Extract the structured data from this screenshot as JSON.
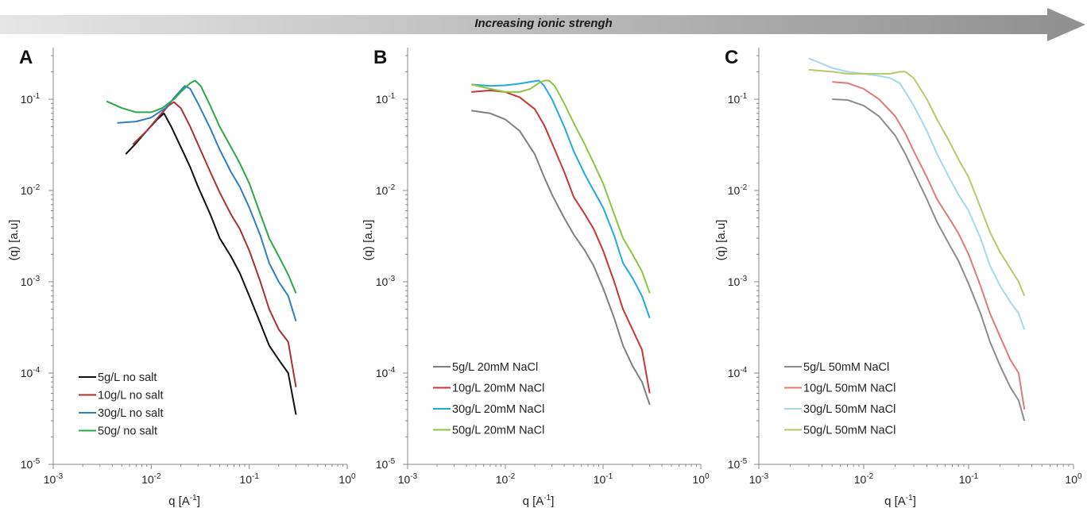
{
  "banner": {
    "text": "Increasing ionic strengh"
  },
  "chart_data": [
    {
      "type": "line",
      "panel_label": "A",
      "scale": "log-log",
      "xlabel": "q [A-1]",
      "ylabel": "(q) [a.u]",
      "xlim": [
        0.001,
        1
      ],
      "ylim": [
        1e-05,
        1
      ],
      "x_ticks": [
        "10-3",
        "10-2",
        "10-1",
        "100"
      ],
      "y_ticks": [
        "10-1",
        "10-2",
        "10-3",
        "10-4",
        "10-5"
      ],
      "legend_position": "bottom-left",
      "series": [
        {
          "name": "5g/L no salt",
          "color": "#111111",
          "x": [
            0.0055,
            0.007,
            0.009,
            0.0115,
            0.0135,
            0.016,
            0.02,
            0.025,
            0.03,
            0.04,
            0.05,
            0.065,
            0.08,
            0.1,
            0.13,
            0.16,
            0.2,
            0.25,
            0.3
          ],
          "y": [
            0.025,
            0.033,
            0.045,
            0.06,
            0.07,
            0.05,
            0.03,
            0.018,
            0.011,
            0.0055,
            0.003,
            0.0019,
            0.00125,
            0.0007,
            0.00035,
            0.0002,
            0.00014,
            0.0001,
            3.5e-05
          ]
        },
        {
          "name": "10g/L no salt",
          "color": "#a83232",
          "x": [
            0.0065,
            0.009,
            0.012,
            0.015,
            0.017,
            0.02,
            0.025,
            0.03,
            0.04,
            0.05,
            0.065,
            0.08,
            0.1,
            0.13,
            0.16,
            0.2,
            0.25,
            0.3
          ],
          "y": [
            0.032,
            0.045,
            0.065,
            0.085,
            0.093,
            0.08,
            0.05,
            0.032,
            0.016,
            0.0095,
            0.0055,
            0.0038,
            0.0022,
            0.001,
            0.0005,
            0.0003,
            0.00022,
            7e-05
          ]
        },
        {
          "name": "30g/L no salt",
          "color": "#2f7fc1",
          "x": [
            0.0045,
            0.007,
            0.01,
            0.014,
            0.018,
            0.022,
            0.025,
            0.03,
            0.04,
            0.05,
            0.065,
            0.08,
            0.1,
            0.13,
            0.16,
            0.2,
            0.25,
            0.3
          ],
          "y": [
            0.055,
            0.057,
            0.063,
            0.08,
            0.11,
            0.14,
            0.13,
            0.09,
            0.048,
            0.028,
            0.016,
            0.011,
            0.0065,
            0.0032,
            0.0016,
            0.001,
            0.0007,
            0.00037
          ]
        },
        {
          "name": "50g/ no salt",
          "color": "#2aa84a",
          "x": [
            0.0035,
            0.005,
            0.007,
            0.01,
            0.013,
            0.017,
            0.02,
            0.025,
            0.028,
            0.032,
            0.04,
            0.05,
            0.065,
            0.08,
            0.1,
            0.13,
            0.16,
            0.2,
            0.25,
            0.3
          ],
          "y": [
            0.095,
            0.08,
            0.072,
            0.072,
            0.08,
            0.1,
            0.12,
            0.15,
            0.16,
            0.14,
            0.085,
            0.05,
            0.03,
            0.02,
            0.012,
            0.0055,
            0.003,
            0.0019,
            0.0012,
            0.00075
          ]
        }
      ]
    },
    {
      "type": "line",
      "panel_label": "B",
      "scale": "log-log",
      "xlabel": "q [A-1]",
      "ylabel": "(q) [a.u]",
      "xlim": [
        0.001,
        1
      ],
      "ylim": [
        1e-05,
        1
      ],
      "x_ticks": [
        "10-3",
        "10-2",
        "10-1",
        "100"
      ],
      "y_ticks": [
        "10-1",
        "10-2",
        "10-3",
        "10-4",
        "10-5"
      ],
      "legend_position": "bottom-left",
      "series": [
        {
          "name": "5g/L 20mM NaCl",
          "color": "#808080",
          "x": [
            0.0045,
            0.007,
            0.01,
            0.014,
            0.02,
            0.025,
            0.03,
            0.04,
            0.05,
            0.065,
            0.08,
            0.1,
            0.13,
            0.16,
            0.2,
            0.25,
            0.3
          ],
          "y": [
            0.075,
            0.07,
            0.06,
            0.045,
            0.025,
            0.014,
            0.009,
            0.005,
            0.0033,
            0.0022,
            0.0015,
            0.00085,
            0.0004,
            0.0002,
            0.00012,
            8e-05,
            4.5e-05
          ]
        },
        {
          "name": "10g/L 20mM NaCl",
          "color": "#c83737",
          "x": [
            0.0045,
            0.007,
            0.01,
            0.014,
            0.02,
            0.025,
            0.03,
            0.04,
            0.05,
            0.065,
            0.08,
            0.1,
            0.13,
            0.16,
            0.2,
            0.25,
            0.3
          ],
          "y": [
            0.12,
            0.125,
            0.12,
            0.105,
            0.078,
            0.052,
            0.033,
            0.016,
            0.0085,
            0.0055,
            0.0038,
            0.0022,
            0.001,
            0.0005,
            0.0003,
            0.00018,
            6e-05
          ]
        },
        {
          "name": "30g/L 20mM NaCl",
          "color": "#22aadd",
          "x": [
            0.0045,
            0.007,
            0.01,
            0.014,
            0.018,
            0.022,
            0.025,
            0.03,
            0.04,
            0.05,
            0.065,
            0.08,
            0.1,
            0.13,
            0.16,
            0.2,
            0.25,
            0.3
          ],
          "y": [
            0.145,
            0.14,
            0.142,
            0.148,
            0.155,
            0.16,
            0.14,
            0.1,
            0.05,
            0.027,
            0.015,
            0.01,
            0.0065,
            0.0032,
            0.0016,
            0.0011,
            0.0007,
            0.0004
          ]
        },
        {
          "name": "50g/L 20mM NaCl",
          "color": "#8cc63f",
          "x": [
            0.0045,
            0.007,
            0.01,
            0.014,
            0.018,
            0.022,
            0.025,
            0.028,
            0.032,
            0.04,
            0.05,
            0.065,
            0.08,
            0.1,
            0.13,
            0.16,
            0.2,
            0.25,
            0.3
          ],
          "y": [
            0.145,
            0.13,
            0.12,
            0.12,
            0.13,
            0.15,
            0.16,
            0.16,
            0.14,
            0.09,
            0.055,
            0.032,
            0.02,
            0.012,
            0.0055,
            0.003,
            0.002,
            0.0013,
            0.00075
          ]
        }
      ]
    },
    {
      "type": "line",
      "panel_label": "C",
      "scale": "log-log",
      "xlabel": "q [A-1]",
      "ylabel": "(q) [a.u]",
      "xlim": [
        0.001,
        1
      ],
      "ylim": [
        1e-05,
        1
      ],
      "x_ticks": [
        "10-3",
        "10-2",
        "10-1",
        "100"
      ],
      "y_ticks": [
        "10-1",
        "10-2",
        "10-3",
        "10-4",
        "10-5"
      ],
      "legend_position": "bottom-left",
      "series": [
        {
          "name": "5g/L 50mM NaCl",
          "color": "#8c8c8c",
          "x": [
            0.005,
            0.007,
            0.01,
            0.014,
            0.02,
            0.025,
            0.03,
            0.04,
            0.05,
            0.065,
            0.08,
            0.1,
            0.13,
            0.16,
            0.2,
            0.25,
            0.3,
            0.34
          ],
          "y": [
            0.1,
            0.098,
            0.085,
            0.065,
            0.04,
            0.025,
            0.016,
            0.008,
            0.0045,
            0.0026,
            0.0017,
            0.00095,
            0.00045,
            0.00022,
            0.00012,
            7e-05,
            5e-05,
            3e-05
          ]
        },
        {
          "name": "10g/L 50mM NaCl",
          "color": "#e07a7a",
          "x": [
            0.005,
            0.007,
            0.01,
            0.014,
            0.02,
            0.025,
            0.03,
            0.04,
            0.05,
            0.065,
            0.08,
            0.1,
            0.13,
            0.16,
            0.2,
            0.25,
            0.3,
            0.34
          ],
          "y": [
            0.155,
            0.15,
            0.13,
            0.1,
            0.065,
            0.042,
            0.027,
            0.014,
            0.008,
            0.005,
            0.0034,
            0.002,
            0.0009,
            0.00045,
            0.00025,
            0.00014,
            0.0001,
            4e-05
          ]
        },
        {
          "name": "30g/L 50mM NaCl",
          "color": "#a6d8ec",
          "x": [
            0.003,
            0.005,
            0.007,
            0.01,
            0.014,
            0.018,
            0.022,
            0.025,
            0.03,
            0.04,
            0.05,
            0.065,
            0.08,
            0.1,
            0.13,
            0.16,
            0.2,
            0.25,
            0.3,
            0.34
          ],
          "y": [
            0.28,
            0.22,
            0.2,
            0.19,
            0.18,
            0.17,
            0.15,
            0.12,
            0.085,
            0.045,
            0.025,
            0.014,
            0.009,
            0.006,
            0.003,
            0.0015,
            0.0009,
            0.0006,
            0.00045,
            0.0003
          ]
        },
        {
          "name": "50g/L 50mM NaCl",
          "color": "#b5c96e",
          "x": [
            0.003,
            0.005,
            0.007,
            0.01,
            0.014,
            0.018,
            0.022,
            0.025,
            0.03,
            0.04,
            0.05,
            0.065,
            0.08,
            0.1,
            0.13,
            0.16,
            0.2,
            0.25,
            0.3,
            0.34
          ],
          "y": [
            0.21,
            0.2,
            0.19,
            0.19,
            0.19,
            0.19,
            0.2,
            0.2,
            0.17,
            0.1,
            0.06,
            0.035,
            0.022,
            0.014,
            0.0065,
            0.0035,
            0.0021,
            0.0014,
            0.001,
            0.0007
          ]
        }
      ]
    }
  ]
}
